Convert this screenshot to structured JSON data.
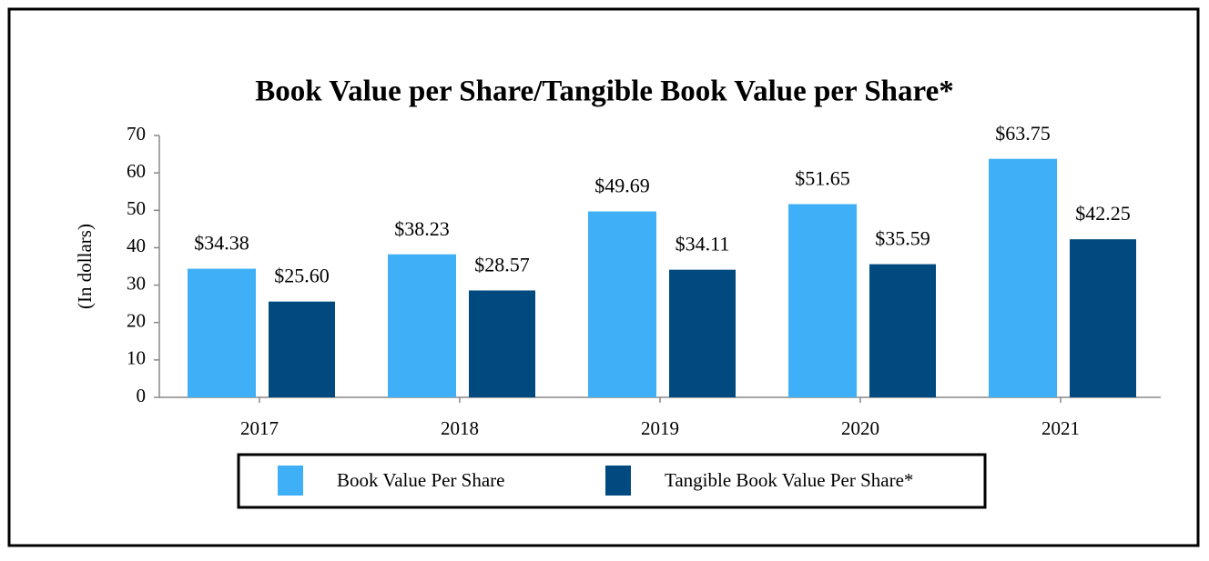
{
  "chart_data": {
    "type": "bar",
    "title": "Book Value per Share/Tangible Book Value per Share*",
    "y_label": "(In dollars)",
    "categories": [
      "2017",
      "2018",
      "2019",
      "2020",
      "2021"
    ],
    "series": [
      {
        "name": "Book Value Per Share",
        "color": "#3fb0f8",
        "values": [
          34.38,
          38.23,
          49.69,
          51.65,
          63.75
        ],
        "value_labels": [
          "$34.38",
          "$38.23",
          "$49.69",
          "$51.65",
          "$63.75"
        ]
      },
      {
        "name": "Tangible Book Value Per Share*",
        "color": "#004a7f",
        "values": [
          25.6,
          28.57,
          34.11,
          35.59,
          42.25
        ],
        "value_labels": [
          "$25.60",
          "$28.57",
          "$34.11",
          "$35.59",
          "$42.25"
        ]
      }
    ],
    "ylim": [
      0,
      70
    ],
    "yticks": [
      0,
      10,
      20,
      30,
      40,
      50,
      60,
      70
    ],
    "grid": false,
    "legend": "bottom"
  }
}
